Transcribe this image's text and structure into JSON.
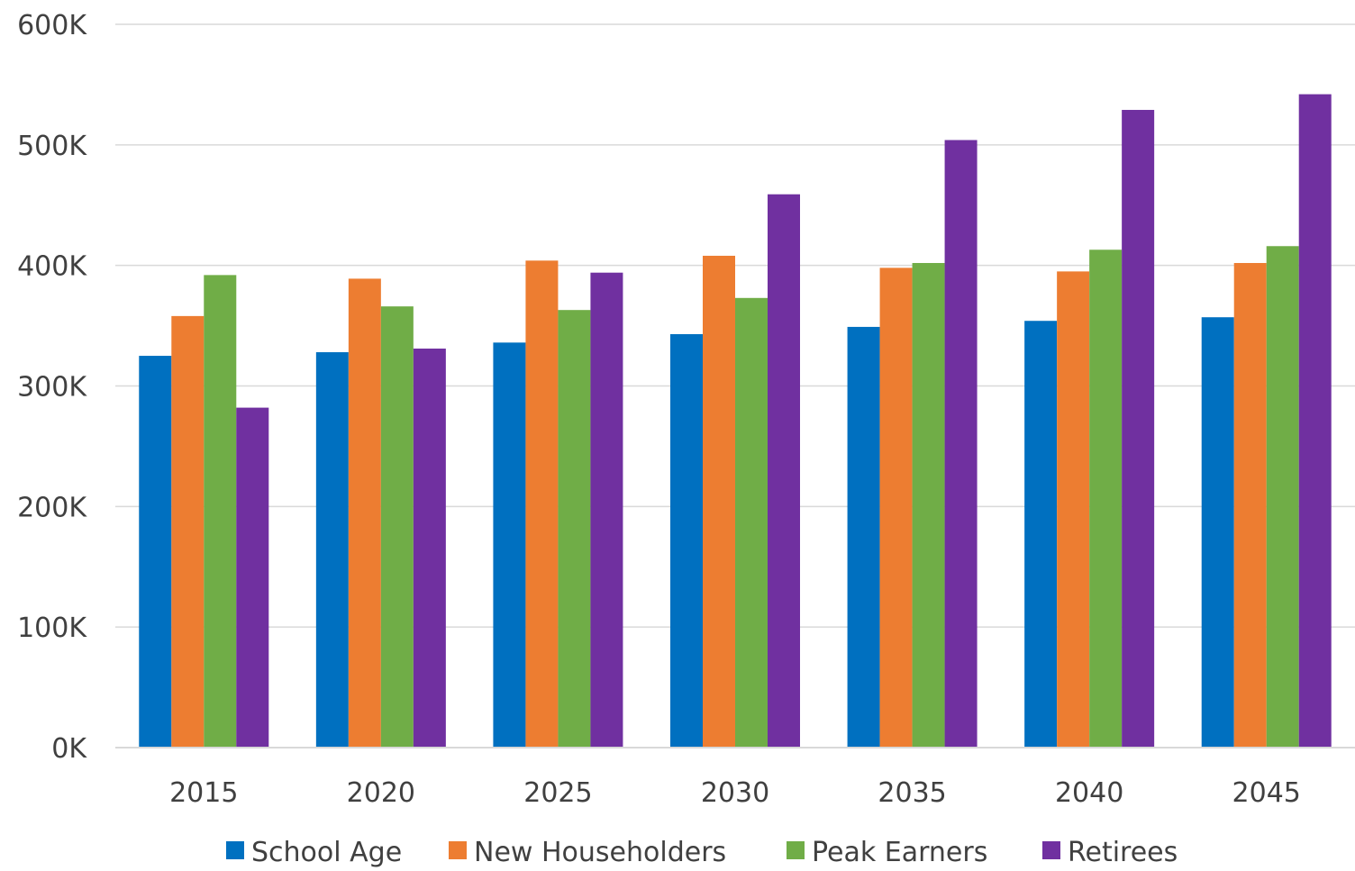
{
  "chart_data": {
    "type": "bar",
    "title": "",
    "xlabel": "",
    "ylabel": "",
    "categories": [
      "2015",
      "2020",
      "2025",
      "2030",
      "2035",
      "2040",
      "2045"
    ],
    "series": [
      {
        "name": "School Age",
        "color": "#0070C0",
        "values": [
          325,
          328,
          336,
          343,
          349,
          354,
          357
        ]
      },
      {
        "name": "New Householders",
        "color": "#ED7D31",
        "values": [
          358,
          389,
          404,
          408,
          398,
          395,
          402
        ]
      },
      {
        "name": "Peak Earners",
        "color": "#70AD47",
        "values": [
          392,
          366,
          363,
          373,
          402,
          413,
          416
        ]
      },
      {
        "name": "Retirees",
        "color": "#7030A0",
        "values": [
          282,
          331,
          394,
          459,
          504,
          529,
          542
        ]
      }
    ],
    "ylim": [
      0,
      600
    ],
    "yticks": [
      {
        "value": 0,
        "label": "0K"
      },
      {
        "value": 100,
        "label": "100K"
      },
      {
        "value": 200,
        "label": "200K"
      },
      {
        "value": 300,
        "label": "300K"
      },
      {
        "value": 400,
        "label": "400K"
      },
      {
        "value": 500,
        "label": "500K"
      },
      {
        "value": 600,
        "label": "600K"
      }
    ],
    "grid": true,
    "legend_position": "bottom"
  }
}
